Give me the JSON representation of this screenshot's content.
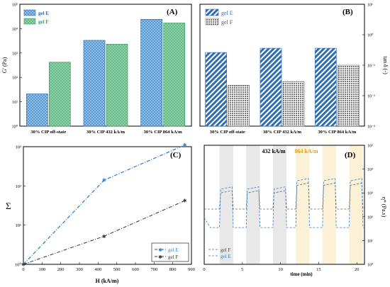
{
  "chart_data": [
    {
      "panel": "(A)",
      "type": "bar",
      "ylabel": "G' (Pa)",
      "yscale": "log",
      "ylim": [
        1,
        100000
      ],
      "yticks": [
        "10⁰",
        "10¹",
        "10²",
        "10³",
        "10⁴",
        "10⁵"
      ],
      "categories": [
        "30% CIP off-state",
        "30% CIP 432 kA/m",
        "30% CIP 864 kA/m"
      ],
      "series": [
        {
          "name": "gel E",
          "values": [
            21,
            3300,
            24000
          ]
        },
        {
          "name": "gel F",
          "values": [
            420,
            2300,
            17000
          ]
        }
      ],
      "legend": "top-left"
    },
    {
      "panel": "(B)",
      "type": "bar",
      "ylabel": "tan δ (-)",
      "yscale": "log",
      "yaxis_side": "right",
      "ylim": [
        0.001,
        10
      ],
      "yticks": [
        "10⁻³",
        "10⁻²",
        "10⁻¹",
        "10⁰",
        "10¹"
      ],
      "categories": [
        "30% CIP off-state",
        "30% CIP 432 kA/m",
        "30% CIP 864 kA/m"
      ],
      "series": [
        {
          "name": "gel E",
          "values": [
            0.26,
            0.36,
            0.36
          ]
        },
        {
          "name": "gel F",
          "values": [
            0.022,
            0.029,
            0.1
          ]
        }
      ],
      "legend": "top-left"
    },
    {
      "panel": "(C)",
      "type": "line",
      "xlabel": "H (kA/m)",
      "ylabel": "Σ",
      "yscale": "log",
      "xlim": [
        0,
        900
      ],
      "ylim": [
        1,
        1000
      ],
      "xticks": [
        "0",
        "100",
        "200",
        "300",
        "400",
        "500",
        "600",
        "700",
        "800",
        "900"
      ],
      "yticks": [
        "10⁰",
        "10¹",
        "10²",
        "10³"
      ],
      "series": [
        {
          "name": "gel E",
          "x": [
            0,
            432,
            864
          ],
          "values": [
            1,
            140,
            1100
          ]
        },
        {
          "name": "gel F",
          "x": [
            0,
            432,
            864
          ],
          "values": [
            1,
            5.2,
            42
          ]
        }
      ],
      "legend": "bottom-right"
    },
    {
      "panel": "(D)",
      "type": "line",
      "xlabel": "time (min)",
      "ylabel": "η* (Pa.s)",
      "yscale": "log",
      "yaxis_side": "right",
      "xlim": [
        0,
        21
      ],
      "ylim": [
        1,
        100000
      ],
      "xticks": [
        "0",
        "5",
        "10",
        "15",
        "20"
      ],
      "yticks": [
        "10⁰",
        "10¹",
        "10²",
        "10³",
        "10⁴",
        "10⁵"
      ],
      "annotations": [
        "432 kA/m",
        "864 kA/m"
      ],
      "shaded_on_intervals_432": [
        [
          2,
          3.8
        ],
        [
          5.5,
          7.3
        ],
        [
          9,
          10.8
        ]
      ],
      "shaded_on_intervals_864": [
        [
          12,
          13.8
        ],
        [
          15.5,
          17.3
        ],
        [
          19,
          20.8
        ]
      ],
      "series": [
        {
          "name": "gel F",
          "off_value": 210,
          "on_values_432": 1250,
          "on_values_864": 2600
        },
        {
          "name": "gel E",
          "off_value": 35,
          "on_values_432": 1800,
          "on_values_864": 4000
        }
      ],
      "legend": "bottom-left"
    }
  ],
  "colors": {
    "gel_E": "#2f6db3",
    "gel_E_fill": "#8ec1ea",
    "gel_F_fill_A": "#8fd3a8",
    "gel_F_edge_A": "#3f9a63",
    "gel_F_fill_B": "#9a9a9a",
    "line_E": "#2f7fd0",
    "line_F": "#333333",
    "shade_432": "#e8e8e8",
    "shade_864": "#fbf1d6",
    "label_864": "#e0a020"
  }
}
